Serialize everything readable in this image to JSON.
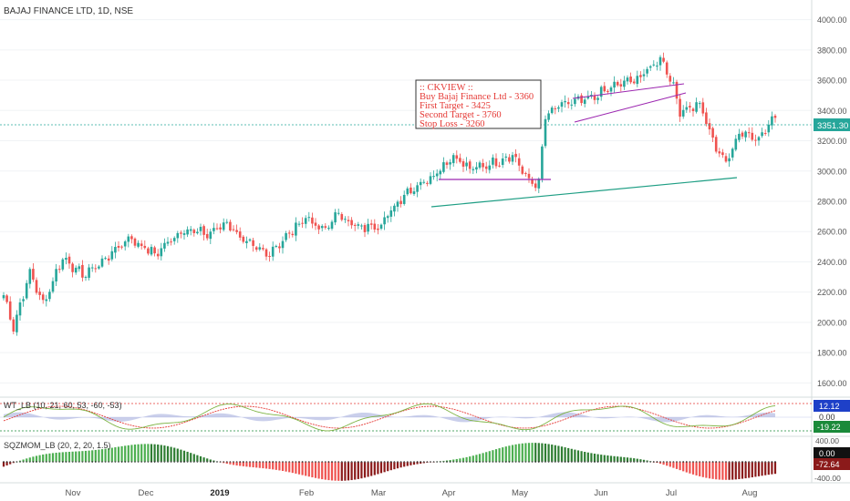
{
  "header": {
    "symbol": "BAJAJ FINANCE LTD, 1D, NSE"
  },
  "colors": {
    "up": "#26a69a",
    "down": "#ef5350",
    "pivot_line": "#1e9e84",
    "channel": "#9c27b0",
    "price_badge": "#26a69a",
    "annotation_text": "#e53935"
  },
  "annotation": {
    "lines": [
      ":: CKVIEW ::",
      "Buy Bajaj Finance Ltd - 3360",
      "First Target - 3425",
      "Second Target - 3760",
      "Stop Loss - 3260"
    ]
  },
  "price_badge": "3351.30",
  "indicators": {
    "wt": {
      "title": "WT_LB (10, 21, 60, 53, -60, -53)",
      "badges": [
        "12.12",
        "0.00",
        "-19.22"
      ]
    },
    "sqz": {
      "title": "SQZMOM_LB (20, 2, 20, 1.5)",
      "badges": [
        "0.00",
        "-72.64"
      ],
      "axis": [
        "400.00",
        "-400.00"
      ]
    }
  },
  "chart_data": [
    {
      "type": "candlestick",
      "y_ticks": [
        1600,
        1800,
        2000,
        2200,
        2400,
        2600,
        2800,
        3000,
        3200,
        3400,
        3600,
        3800,
        4000
      ],
      "y_tick_labels": [
        "1600.00",
        "1800.00",
        "2000.00",
        "2200.00",
        "2400.00",
        "2600.00",
        "2800.00",
        "3000.00",
        "3200.00",
        "3400.00",
        "3600.00",
        "3800.00",
        "4000.00"
      ],
      "ylim": [
        1530,
        4130
      ],
      "x_tick_labels": [
        "Nov",
        "Dec",
        "2019",
        "Feb",
        "Mar",
        "Apr",
        "May",
        "Jun",
        "Jul",
        "Aug"
      ],
      "close_anchors": [
        {
          "bar": 0,
          "price": 2180
        },
        {
          "bar": 3,
          "price": 1970
        },
        {
          "bar": 8,
          "price": 2330
        },
        {
          "bar": 12,
          "price": 2120
        },
        {
          "bar": 18,
          "price": 2430
        },
        {
          "bar": 24,
          "price": 2310
        },
        {
          "bar": 30,
          "price": 2400
        },
        {
          "bar": 38,
          "price": 2560
        },
        {
          "bar": 46,
          "price": 2450
        },
        {
          "bar": 55,
          "price": 2620
        },
        {
          "bar": 62,
          "price": 2580
        },
        {
          "bar": 68,
          "price": 2660
        },
        {
          "bar": 74,
          "price": 2520
        },
        {
          "bar": 80,
          "price": 2450
        },
        {
          "bar": 86,
          "price": 2560
        },
        {
          "bar": 92,
          "price": 2700
        },
        {
          "bar": 97,
          "price": 2600
        },
        {
          "bar": 102,
          "price": 2720
        },
        {
          "bar": 108,
          "price": 2620
        },
        {
          "bar": 115,
          "price": 2650
        },
        {
          "bar": 122,
          "price": 2850
        },
        {
          "bar": 130,
          "price": 2960
        },
        {
          "bar": 137,
          "price": 3100
        },
        {
          "bar": 142,
          "price": 3010
        },
        {
          "bar": 150,
          "price": 3060
        },
        {
          "bar": 155,
          "price": 3110
        },
        {
          "bar": 160,
          "price": 2930
        },
        {
          "bar": 163,
          "price": 2920
        },
        {
          "bar": 165,
          "price": 3360
        },
        {
          "bar": 170,
          "price": 3440
        },
        {
          "bar": 178,
          "price": 3470
        },
        {
          "bar": 186,
          "price": 3560
        },
        {
          "bar": 194,
          "price": 3620
        },
        {
          "bar": 200,
          "price": 3750
        },
        {
          "bar": 203,
          "price": 3620
        },
        {
          "bar": 206,
          "price": 3400
        },
        {
          "bar": 212,
          "price": 3440
        },
        {
          "bar": 216,
          "price": 3200
        },
        {
          "bar": 220,
          "price": 3050
        },
        {
          "bar": 224,
          "price": 3260
        },
        {
          "bar": 230,
          "price": 3220
        },
        {
          "bar": 235,
          "price": 3351
        }
      ],
      "current_price": 3351.3
    },
    {
      "type": "line",
      "name_ref": "indicators.wt.title",
      "ylim": [
        -80,
        80
      ],
      "overbought": 60,
      "oversold": -53,
      "last_values": [
        12.12,
        0.0,
        -19.22
      ]
    },
    {
      "type": "bar",
      "name_ref": "indicators.sqz.title",
      "ylim": [
        -520,
        520
      ],
      "y_tick_labels": [
        "400.00",
        "-400.00"
      ],
      "last_value": -72.64
    }
  ]
}
